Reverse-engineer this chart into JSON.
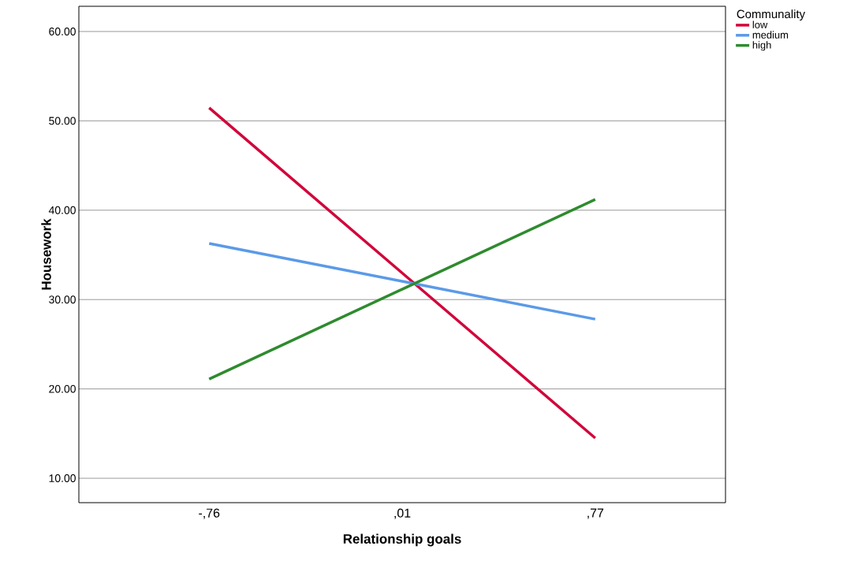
{
  "chart_data": {
    "type": "line",
    "xlabel": "Relationship goals",
    "ylabel": "Housework",
    "legend_title": "Communality",
    "categories": [
      "-,76",
      ",01",
      ",77"
    ],
    "series": [
      {
        "name": "low",
        "color": "#d1063b",
        "values": [
          51.45,
          32.97,
          14.5
        ]
      },
      {
        "name": "medium",
        "color": "#5b9ae8",
        "values": [
          36.28,
          32.04,
          27.8
        ]
      },
      {
        "name": "high",
        "color": "#2e8b2e",
        "values": [
          21.1,
          31.15,
          41.2
        ]
      }
    ],
    "ylim": [
      7.27,
      62.82
    ],
    "yticks": [
      {
        "value": 10,
        "label": "10.00"
      },
      {
        "value": 20,
        "label": "20.00"
      },
      {
        "value": 30,
        "label": "30.00"
      },
      {
        "value": 40,
        "label": "40.00"
      },
      {
        "value": 50,
        "label": "50.00"
      },
      {
        "value": 60,
        "label": "60.00"
      }
    ],
    "grid": "y",
    "legend": "top right",
    "marker": "none",
    "line_style": "solid"
  }
}
